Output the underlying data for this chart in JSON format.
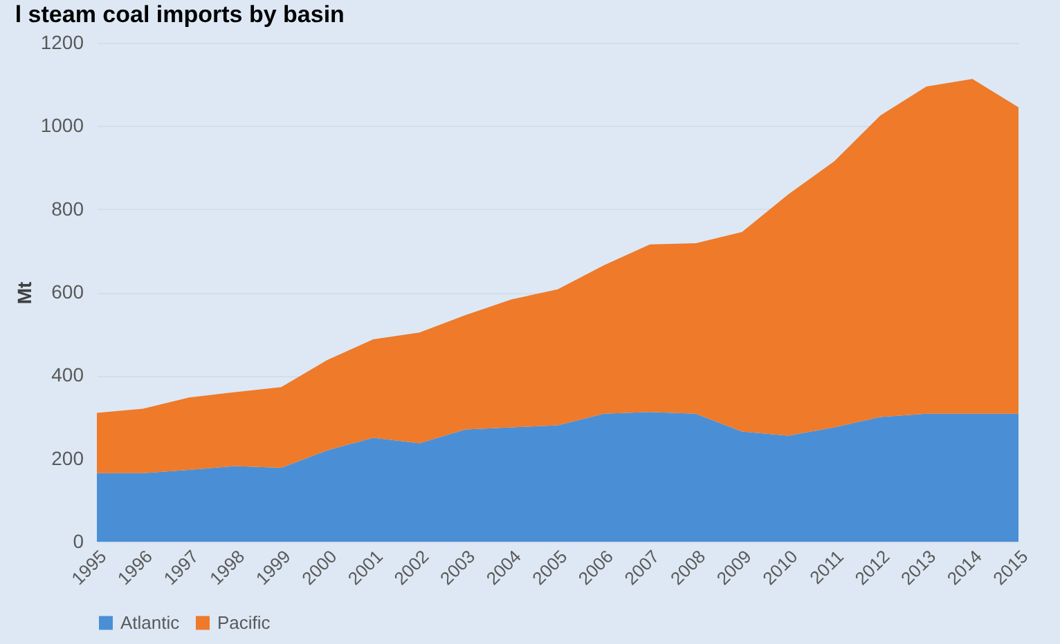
{
  "chart_data": {
    "type": "area",
    "title": "l steam coal imports by basin",
    "ylabel": "Mt",
    "categories": [
      "1995",
      "1996",
      "1997",
      "1998",
      "1999",
      "2000",
      "2001",
      "2002",
      "2003",
      "2004",
      "2005",
      "2006",
      "2007",
      "2008",
      "2009",
      "2010",
      "2011",
      "2012",
      "2013",
      "2014",
      "2015"
    ],
    "series": [
      {
        "name": "Atlantic",
        "color": "#4a8fd6",
        "values": [
          165,
          165,
          173,
          182,
          178,
          220,
          250,
          237,
          270,
          275,
          280,
          308,
          312,
          308,
          265,
          255,
          275,
          300,
          308,
          308,
          308
        ]
      },
      {
        "name": "Pacific",
        "color": "#ee7a2a",
        "values": [
          145,
          155,
          174,
          178,
          194,
          217,
          237,
          266,
          275,
          308,
          327,
          357,
          403,
          410,
          480,
          580,
          640,
          725,
          787,
          805,
          737
        ]
      }
    ],
    "stacked": true,
    "ylim": [
      0,
      1200
    ],
    "yticks": [
      0,
      200,
      400,
      600,
      800,
      1000,
      1200
    ],
    "grid": "y",
    "legend": "bottom"
  }
}
